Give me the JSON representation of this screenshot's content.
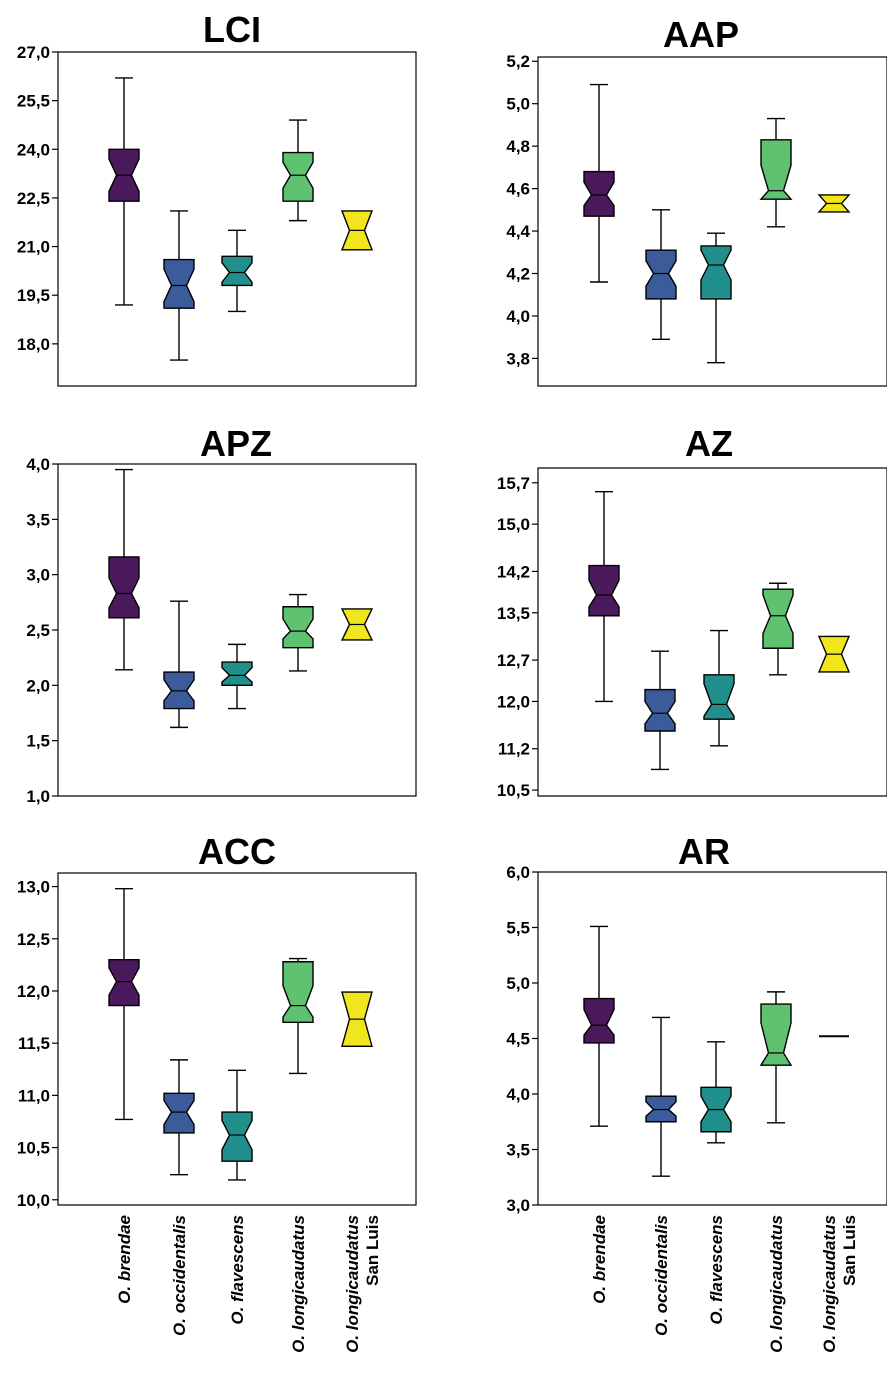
{
  "colors": {
    "O. brendae": "#4a1a5c",
    "O. occidentalis": "#3b5b9a",
    "O. flavescens": "#21908d",
    "O. longicaudatus": "#5ec270",
    "O. longicaudatus San Luis": "#f1e51d"
  },
  "category_labels": [
    {
      "italic": "O. brendae",
      "extra": ""
    },
    {
      "italic": "O. occidentalis",
      "extra": ""
    },
    {
      "italic": "O. flavescens",
      "extra": ""
    },
    {
      "italic": "O. longicaudatus",
      "extra": ""
    },
    {
      "italic": "O. longicaudatus",
      "extra": "San Luis"
    }
  ],
  "chart_data": [
    {
      "type": "box",
      "title": "LCI",
      "categories": [
        "O. brendae",
        "O. occidentalis",
        "O. flavescens",
        "O. longicaudatus",
        "O. longicaudatus San Luis"
      ],
      "yticks": [
        "27,0",
        "25,5",
        "24,0",
        "22,5",
        "21,0",
        "19,5",
        "18,0"
      ],
      "ytick_values": [
        27.0,
        25.5,
        24.0,
        22.5,
        21.0,
        19.5,
        18.0
      ],
      "ylim": [
        16.7,
        27.0
      ],
      "boxes": [
        {
          "min": 19.2,
          "q1": 22.4,
          "median": 23.2,
          "q3": 24.0,
          "max": 26.2,
          "notch_lo": 22.7,
          "notch_hi": 23.7
        },
        {
          "min": 17.5,
          "q1": 19.1,
          "median": 19.8,
          "q3": 20.6,
          "max": 22.1,
          "notch_lo": 19.3,
          "notch_hi": 20.3
        },
        {
          "min": 19.0,
          "q1": 19.8,
          "median": 20.2,
          "q3": 20.7,
          "max": 21.5,
          "notch_lo": 19.9,
          "notch_hi": 20.5
        },
        {
          "min": 21.8,
          "q1": 22.4,
          "median": 23.2,
          "q3": 23.9,
          "max": 24.9,
          "notch_lo": 22.8,
          "notch_hi": 23.6
        },
        {
          "min": null,
          "q1": 20.9,
          "median": 21.5,
          "q3": 22.1,
          "max": null,
          "notch_lo": 21.5,
          "notch_hi": 21.5
        }
      ]
    },
    {
      "type": "box",
      "title": "AAP",
      "categories": [
        "O. brendae",
        "O. occidentalis",
        "O. flavescens",
        "O. longicaudatus",
        "O. longicaudatus San Luis"
      ],
      "yticks": [
        "5,2",
        "5,0",
        "4,8",
        "4,6",
        "4,4",
        "4,2",
        "4,0",
        "3,8"
      ],
      "ytick_values": [
        5.2,
        5.0,
        4.8,
        4.6,
        4.4,
        4.2,
        4.0,
        3.8
      ],
      "ylim": [
        3.67,
        5.22
      ],
      "boxes": [
        {
          "min": 4.16,
          "q1": 4.47,
          "median": 4.57,
          "q3": 4.68,
          "max": 5.09,
          "notch_lo": 4.52,
          "notch_hi": 4.63
        },
        {
          "min": 3.89,
          "q1": 4.08,
          "median": 4.2,
          "q3": 4.31,
          "max": 4.5,
          "notch_lo": 4.14,
          "notch_hi": 4.26
        },
        {
          "min": 3.78,
          "q1": 4.08,
          "median": 4.24,
          "q3": 4.33,
          "max": 4.39,
          "notch_lo": 4.17,
          "notch_hi": 4.31
        },
        {
          "min": 4.42,
          "q1": 4.55,
          "median": 4.59,
          "q3": 4.83,
          "max": 4.93,
          "notch_lo": 4.55,
          "notch_hi": 4.71
        },
        {
          "min": null,
          "q1": 4.49,
          "median": 4.53,
          "q3": 4.57,
          "max": null,
          "notch_lo": 4.53,
          "notch_hi": 4.53
        }
      ]
    },
    {
      "type": "box",
      "title": "APZ",
      "categories": [
        "O. brendae",
        "O. occidentalis",
        "O. flavescens",
        "O. longicaudatus",
        "O. longicaudatus San Luis"
      ],
      "yticks": [
        "4,0",
        "3,5",
        "3,0",
        "2,5",
        "2,0",
        "1,5",
        "1,0"
      ],
      "ytick_values": [
        4.0,
        3.5,
        3.0,
        2.5,
        2.0,
        1.5,
        1.0
      ],
      "ylim": [
        1.0,
        4.0
      ],
      "boxes": [
        {
          "min": 2.14,
          "q1": 2.61,
          "median": 2.83,
          "q3": 3.16,
          "max": 3.95,
          "notch_lo": 2.7,
          "notch_hi": 2.97
        },
        {
          "min": 1.62,
          "q1": 1.79,
          "median": 1.95,
          "q3": 2.12,
          "max": 2.76,
          "notch_lo": 1.86,
          "notch_hi": 2.05
        },
        {
          "min": 1.79,
          "q1": 2.0,
          "median": 2.09,
          "q3": 2.21,
          "max": 2.37,
          "notch_lo": 2.03,
          "notch_hi": 2.16
        },
        {
          "min": 2.13,
          "q1": 2.34,
          "median": 2.49,
          "q3": 2.71,
          "max": 2.82,
          "notch_lo": 2.42,
          "notch_hi": 2.6
        },
        {
          "min": null,
          "q1": 2.41,
          "median": 2.55,
          "q3": 2.69,
          "max": null,
          "notch_lo": 2.55,
          "notch_hi": 2.55
        }
      ]
    },
    {
      "type": "box",
      "title": "AZ",
      "categories": [
        "O. brendae",
        "O. occidentalis",
        "O. flavescens",
        "O. longicaudatus",
        "O. longicaudatus San Luis"
      ],
      "yticks": [
        "15,7",
        "15,0",
        "14,2",
        "13,5",
        "12,7",
        "12,0",
        "11,2",
        "10,5"
      ],
      "ytick_values": [
        15.7,
        15.0,
        14.2,
        13.5,
        12.7,
        12.0,
        11.2,
        10.5
      ],
      "ylim": [
        10.4,
        15.95
      ],
      "boxes": [
        {
          "min": 12.0,
          "q1": 13.45,
          "median": 13.8,
          "q3": 14.3,
          "max": 15.55,
          "notch_lo": 13.6,
          "notch_hi": 14.05
        },
        {
          "min": 10.85,
          "q1": 11.5,
          "median": 11.8,
          "q3": 12.2,
          "max": 12.85,
          "notch_lo": 11.62,
          "notch_hi": 12.0
        },
        {
          "min": 11.25,
          "q1": 11.7,
          "median": 11.95,
          "q3": 12.45,
          "max": 13.2,
          "notch_lo": 11.75,
          "notch_hi": 12.3
        },
        {
          "min": 12.45,
          "q1": 12.9,
          "median": 13.45,
          "q3": 13.9,
          "max": 14.0,
          "notch_lo": 13.15,
          "notch_hi": 13.8
        },
        {
          "min": null,
          "q1": 12.5,
          "median": 12.8,
          "q3": 13.1,
          "max": null,
          "notch_lo": 12.8,
          "notch_hi": 12.8
        }
      ]
    },
    {
      "type": "box",
      "title": "ACC",
      "categories": [
        "O. brendae",
        "O. occidentalis",
        "O. flavescens",
        "O. longicaudatus",
        "O. longicaudatus San Luis"
      ],
      "yticks": [
        "13,0",
        "12,5",
        "12,0",
        "11,5",
        "11,0",
        "10,5",
        "10,0"
      ],
      "ytick_values": [
        13.0,
        12.5,
        12.0,
        11.5,
        11.0,
        10.5,
        10.0
      ],
      "ylim": [
        9.95,
        13.13
      ],
      "boxes": [
        {
          "min": 10.77,
          "q1": 11.86,
          "median": 12.09,
          "q3": 12.3,
          "max": 12.98,
          "notch_lo": 11.96,
          "notch_hi": 12.22
        },
        {
          "min": 10.24,
          "q1": 10.64,
          "median": 10.84,
          "q3": 11.02,
          "max": 11.34,
          "notch_lo": 10.72,
          "notch_hi": 10.95
        },
        {
          "min": 10.19,
          "q1": 10.37,
          "median": 10.62,
          "q3": 10.84,
          "max": 11.24,
          "notch_lo": 10.48,
          "notch_hi": 10.76
        },
        {
          "min": 11.21,
          "q1": 11.7,
          "median": 11.86,
          "q3": 12.28,
          "max": 12.31,
          "notch_lo": 11.75,
          "notch_hi": 12.05
        },
        {
          "min": null,
          "q1": 11.47,
          "median": 11.73,
          "q3": 11.99,
          "max": null,
          "notch_lo": 11.73,
          "notch_hi": 11.73
        }
      ]
    },
    {
      "type": "box",
      "title": "AR",
      "categories": [
        "O. brendae",
        "O. occidentalis",
        "O. flavescens",
        "O. longicaudatus",
        "O. longicaudatus San Luis"
      ],
      "yticks": [
        "6,0",
        "5,5",
        "5,0",
        "4,5",
        "4,0",
        "3,5",
        "3,0"
      ],
      "ytick_values": [
        6.0,
        5.5,
        5.0,
        4.5,
        4.0,
        3.5,
        3.0
      ],
      "ylim": [
        3.0,
        6.0
      ],
      "boxes": [
        {
          "min": 3.71,
          "q1": 4.46,
          "median": 4.62,
          "q3": 4.86,
          "max": 5.51,
          "notch_lo": 4.53,
          "notch_hi": 4.76
        },
        {
          "min": 3.26,
          "q1": 3.75,
          "median": 3.86,
          "q3": 3.98,
          "max": 4.69,
          "notch_lo": 3.8,
          "notch_hi": 3.93
        },
        {
          "min": 3.56,
          "q1": 3.66,
          "median": 3.86,
          "q3": 4.06,
          "max": 4.47,
          "notch_lo": 3.75,
          "notch_hi": 3.98
        },
        {
          "min": 3.74,
          "q1": 4.26,
          "median": 4.37,
          "q3": 4.81,
          "max": 4.92,
          "notch_lo": 4.26,
          "notch_hi": 4.64
        },
        {
          "min": null,
          "q1": 4.52,
          "median": 4.52,
          "q3": 4.52,
          "max": null,
          "notch_lo": 4.52,
          "notch_hi": 4.52
        }
      ]
    }
  ]
}
